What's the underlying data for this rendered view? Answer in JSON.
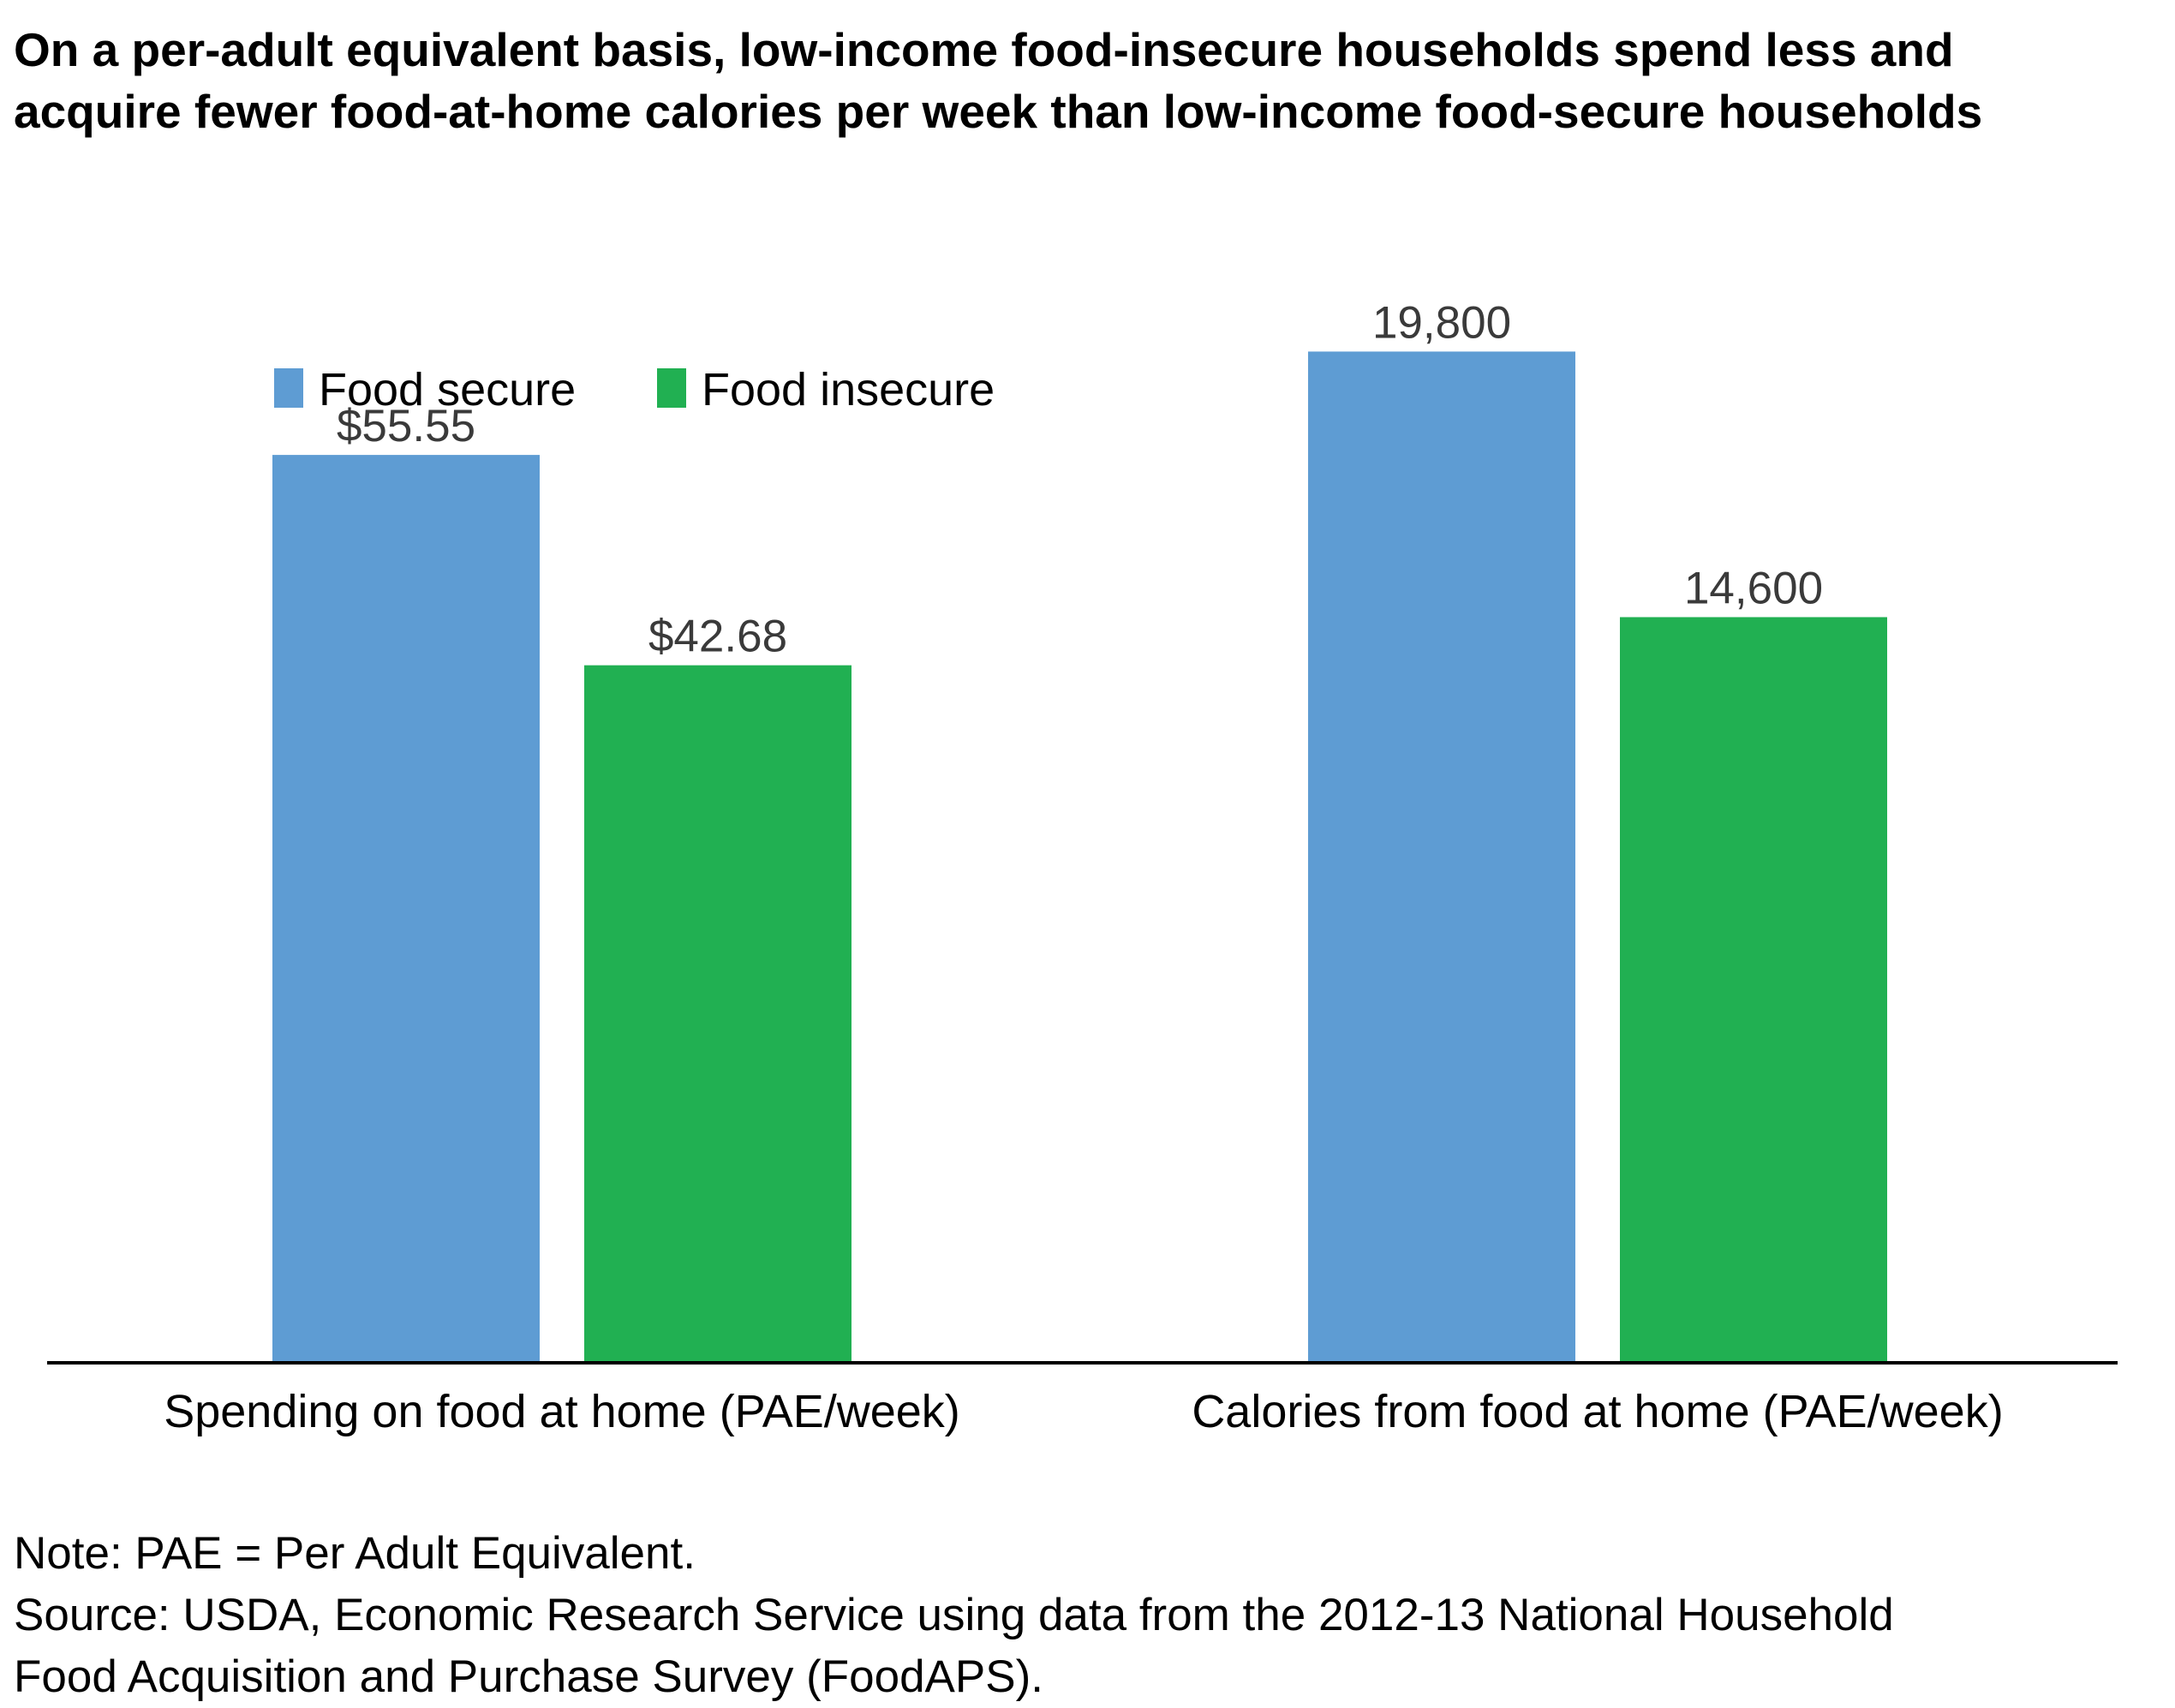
{
  "title_lines": [
    "On a per-adult equivalent basis, low-income food-insecure households spend less and",
    "acquire fewer food-at-home calories per week than low-income food-secure households"
  ],
  "chart_data": [
    {
      "type": "bar",
      "categories": [
        "Spending on food at home (PAE/week)"
      ],
      "series": [
        {
          "name": "Food secure",
          "values": [
            55.55
          ],
          "labels": [
            "$55.55"
          ],
          "color": "#5e9cd3"
        },
        {
          "name": "Food insecure",
          "values": [
            42.68
          ],
          "labels": [
            "$42.68"
          ],
          "color": "#21b052"
        }
      ],
      "ylim": [
        0,
        75
      ]
    },
    {
      "type": "bar",
      "categories": [
        "Calories from food at home (PAE/week)"
      ],
      "series": [
        {
          "name": "Food secure",
          "values": [
            19800
          ],
          "labels": [
            "19,800"
          ],
          "color": "#5e9cd3"
        },
        {
          "name": "Food insecure",
          "values": [
            14600
          ],
          "labels": [
            "14,600"
          ],
          "color": "#21b052"
        }
      ],
      "ylim": [
        0,
        24000
      ]
    }
  ],
  "legend": {
    "position": "top-left",
    "items": [
      {
        "label": "Food secure",
        "color": "#5e9cd3"
      },
      {
        "label": "Food insecure",
        "color": "#21b052"
      }
    ]
  },
  "notes": {
    "note": "Note: PAE = Per Adult Equivalent.",
    "source_line1": "Source: USDA, Economic Research Service using data from the 2012-13 National Household",
    "source_line2": "Food Acquisition and Purchase Survey (FoodAPS)."
  }
}
